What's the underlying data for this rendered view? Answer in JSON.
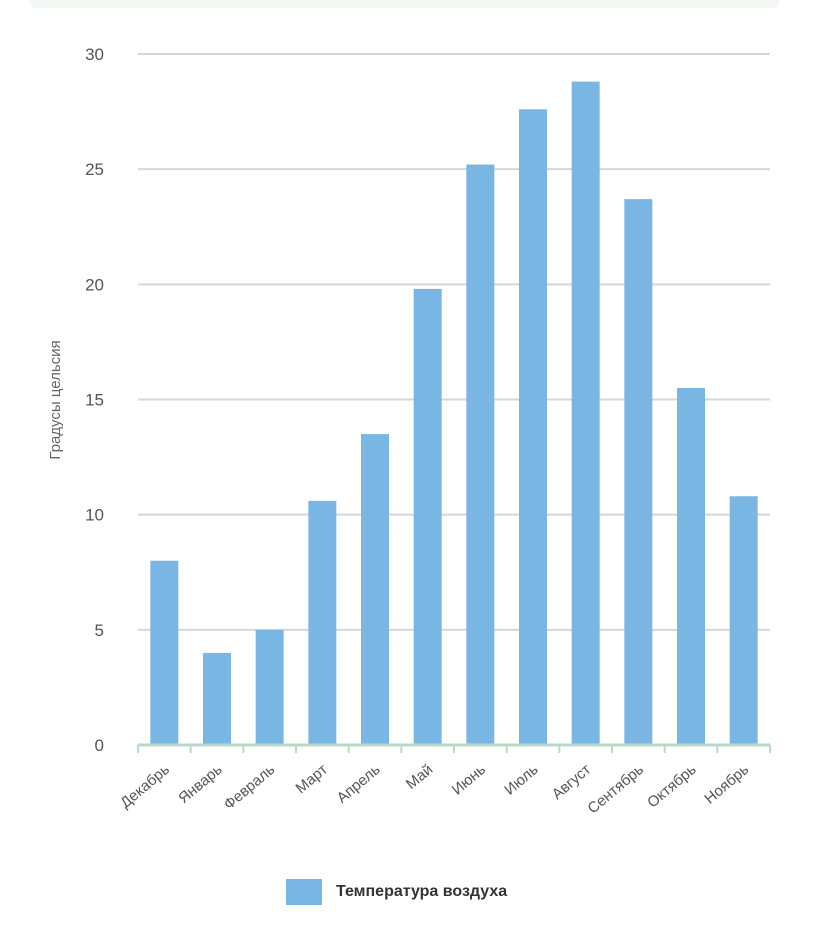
{
  "chart_data": {
    "type": "bar",
    "ylabel": "Градусы цельсия",
    "categories": [
      "Декабрь",
      "Январь",
      "Февраль",
      "Март",
      "Апрель",
      "Май",
      "Июнь",
      "Июль",
      "Август",
      "Сентябрь",
      "Октябрь",
      "Ноябрь"
    ],
    "yticks": [
      "0",
      "5",
      "10",
      "15",
      "20",
      "25",
      "30"
    ],
    "ylim": [
      0,
      30
    ],
    "series": [
      {
        "name": "Температура воздуха",
        "values": [
          8,
          4,
          5,
          10.6,
          13.5,
          19.8,
          25.2,
          27.6,
          28.8,
          23.7,
          15.5,
          10.8
        ]
      }
    ],
    "grid": true,
    "legend_position": "bottom",
    "colors": {
      "bar": "#7ab6e4",
      "grid": "#d4d7da",
      "axis": "#b9d9c4"
    }
  }
}
